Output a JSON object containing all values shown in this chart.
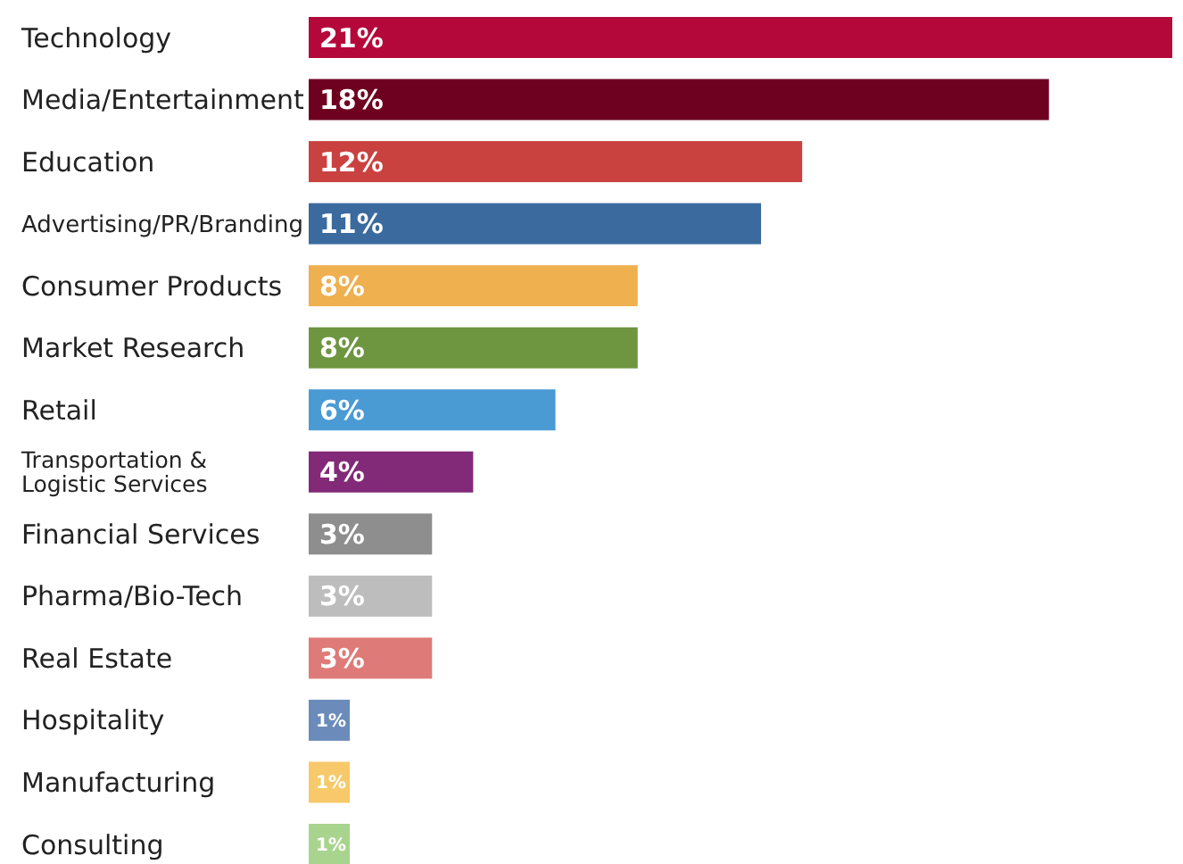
{
  "chart_data": {
    "type": "bar",
    "orientation": "horizontal",
    "categories": [
      "Technology",
      "Media/Entertainment",
      "Education",
      "Advertising/PR/Branding",
      "Consumer Products",
      "Market Research",
      "Retail",
      "Transportation & Logistic Services",
      "Financial Services",
      "Pharma/Bio-Tech",
      "Real Estate",
      "Hospitality",
      "Manufacturing",
      "Consulting"
    ],
    "values": [
      21,
      18,
      12,
      11,
      8,
      8,
      6,
      4,
      3,
      3,
      3,
      1,
      1,
      1
    ],
    "value_labels": [
      "21%",
      "18%",
      "12%",
      "11%",
      "8%",
      "8%",
      "6%",
      "4%",
      "3%",
      "3%",
      "3%",
      "1%",
      "1%",
      "1%"
    ],
    "colors": [
      "#b5083a",
      "#6e0020",
      "#c94240",
      "#3a6a9e",
      "#efb050",
      "#6e9640",
      "#4a9ad4",
      "#822a78",
      "#8e8e8e",
      "#bdbdbd",
      "#de7b78",
      "#6b8cba",
      "#f7c96a",
      "#a8d48e"
    ]
  }
}
